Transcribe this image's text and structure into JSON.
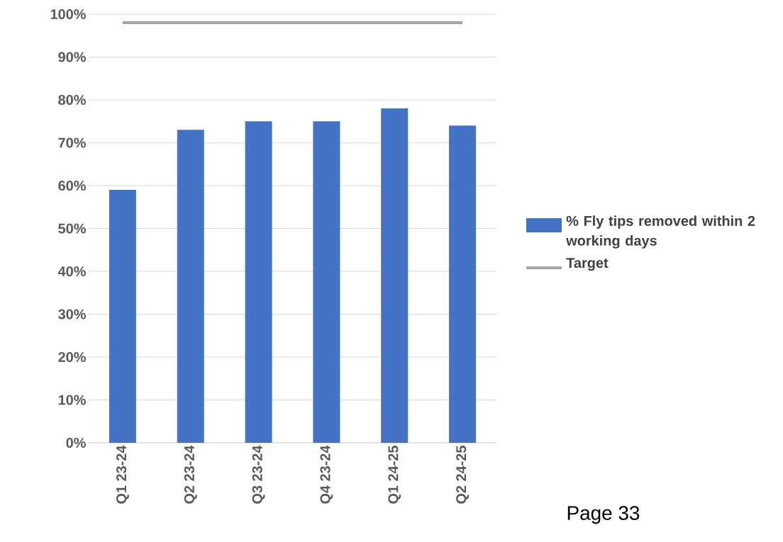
{
  "chart_data": {
    "type": "bar",
    "categories": [
      "Q1 23-24",
      "Q2 23-24",
      "Q3 23-24",
      "Q4 23-24",
      "Q1 24-25",
      "Q2 24-25"
    ],
    "series": [
      {
        "name": "% Fly tips removed within 2 working days",
        "color": "#4472c4",
        "values": [
          59,
          73,
          75,
          75,
          78,
          74
        ]
      },
      {
        "name": "Target",
        "type": "line",
        "color": "#a5a5a5",
        "values": [
          98,
          98,
          98,
          98,
          98,
          98
        ]
      }
    ],
    "ylim": [
      0,
      100
    ],
    "yticks": [
      {
        "value": 0,
        "label": "0%"
      },
      {
        "value": 10,
        "label": "10%"
      },
      {
        "value": 20,
        "label": "20%"
      },
      {
        "value": 30,
        "label": "30%"
      },
      {
        "value": 40,
        "label": "40%"
      },
      {
        "value": 50,
        "label": "50%"
      },
      {
        "value": 60,
        "label": "60%"
      },
      {
        "value": 70,
        "label": "70%"
      },
      {
        "value": 80,
        "label": "80%"
      },
      {
        "value": 90,
        "label": "90%"
      },
      {
        "value": 100,
        "label": "100%"
      }
    ],
    "grid": "y",
    "legend": "right",
    "marker": "none",
    "annotations": [
      "Page 33"
    ]
  }
}
